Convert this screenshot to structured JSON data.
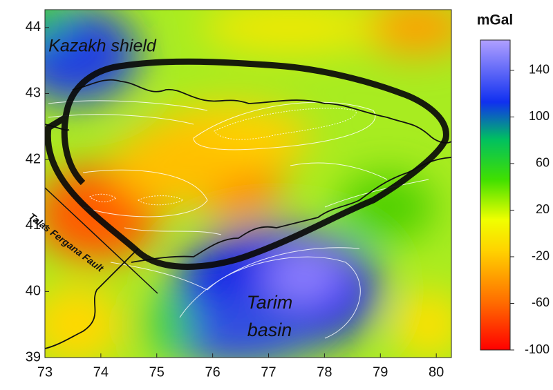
{
  "map": {
    "xlim": [
      73,
      80.27
    ],
    "ylim": [
      39,
      44.27
    ],
    "xticks": [
      73,
      74,
      75,
      76,
      77,
      78,
      79,
      80
    ],
    "yticks": [
      39,
      40,
      41,
      42,
      43,
      44
    ],
    "labels": [
      "Kazakh shield",
      "Tarim",
      "basin",
      "Talas Fergana Fault"
    ],
    "colorbar": {
      "title": "mGal",
      "range": [
        -100,
        166
      ],
      "ticks": [
        -100,
        -60,
        -20,
        20,
        60,
        100,
        140
      ]
    }
  }
}
